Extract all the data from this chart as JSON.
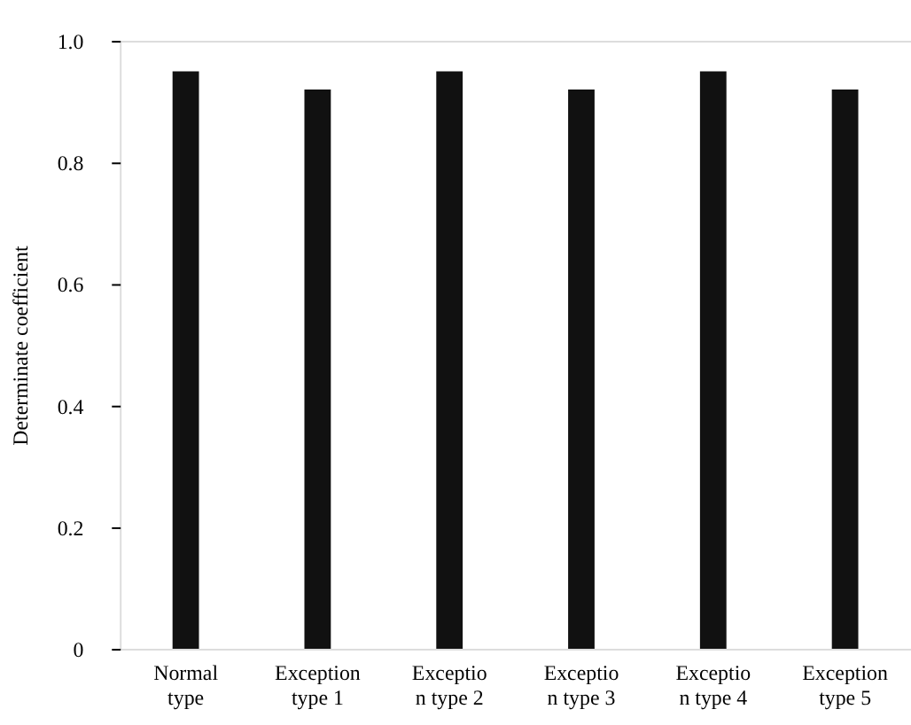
{
  "chart_data": {
    "type": "bar",
    "ylabel": "Determinate coefficient",
    "categories": [
      "Normal\ntype",
      "Exception\ntype 1",
      "Exceptio\nn type 2",
      "Exceptio\nn type 3",
      "Exceptio\nn type 4",
      "Exception\ntype 5"
    ],
    "values": [
      0.95,
      0.92,
      0.95,
      0.92,
      0.95,
      0.92
    ],
    "color": "#111111",
    "ylim": [
      0,
      1
    ],
    "yticks": [
      {
        "value": 0,
        "label": "0"
      },
      0.2,
      0.4,
      0.6,
      0.8,
      {
        "value": 1,
        "label": "1.0"
      }
    ],
    "grid": false
  }
}
